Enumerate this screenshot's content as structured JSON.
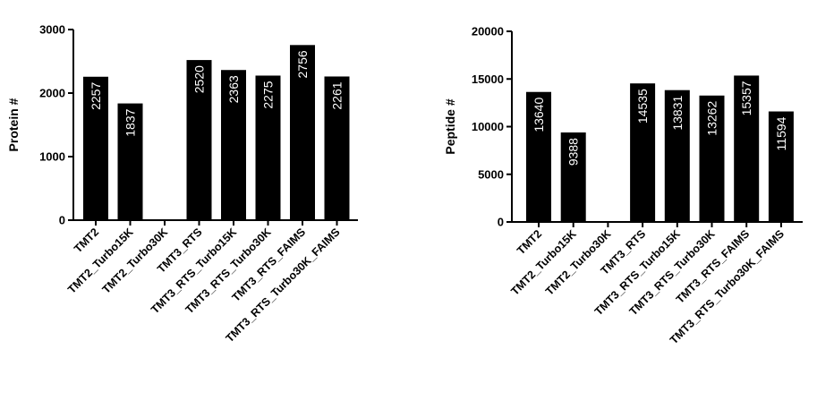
{
  "chart_data": [
    {
      "type": "bar",
      "categories": [
        "TMT2",
        "TMT2_Turbo15K",
        "TMT2_Turbo30K",
        "TMT3_RTS",
        "TMT3_RTS_Turbo15K",
        "TMT3_RTS_Turbo30K",
        "TMT3_RTS_FAIMS",
        "TMT3_RTS_Turbo30K_FAIMS"
      ],
      "values": [
        2257,
        1837,
        null,
        2520,
        2363,
        2275,
        2756,
        2261
      ],
      "data_labels": [
        "2257",
        "1837",
        "",
        "2520",
        "2363",
        "2275",
        "2756",
        "2261"
      ],
      "ylabel": "Protein #",
      "ylim": [
        0,
        3000
      ],
      "yticks": [
        0,
        1000,
        2000,
        3000
      ],
      "ytick_labels": [
        "0",
        "1000",
        "2000",
        "3000"
      ],
      "grid": false,
      "bar_color": "#000000",
      "label_color": "#ffffff"
    },
    {
      "type": "bar",
      "categories": [
        "TMT2",
        "TMT2_Turbo15K",
        "TMT2_Turbo30K",
        "TMT3_RTS",
        "TMT3_RTS_Turbo15K",
        "TMT3_RTS_Turbo30K",
        "TMT3_RTS_FAIMS",
        "TMT3_RTS_Turbo30K_FAIMS"
      ],
      "values": [
        13640,
        9388,
        null,
        14535,
        13831,
        13262,
        15357,
        11594
      ],
      "data_labels": [
        "13640",
        "9388",
        "",
        "14535",
        "13831",
        "13262",
        "15357",
        "11594"
      ],
      "ylabel": "Peptide #",
      "ylim": [
        0,
        20000
      ],
      "yticks": [
        0,
        5000,
        10000,
        15000,
        20000
      ],
      "ytick_labels": [
        "0",
        "5000",
        "10000",
        "15000",
        "20000"
      ],
      "grid": false,
      "bar_color": "#000000",
      "label_color": "#ffffff"
    }
  ]
}
